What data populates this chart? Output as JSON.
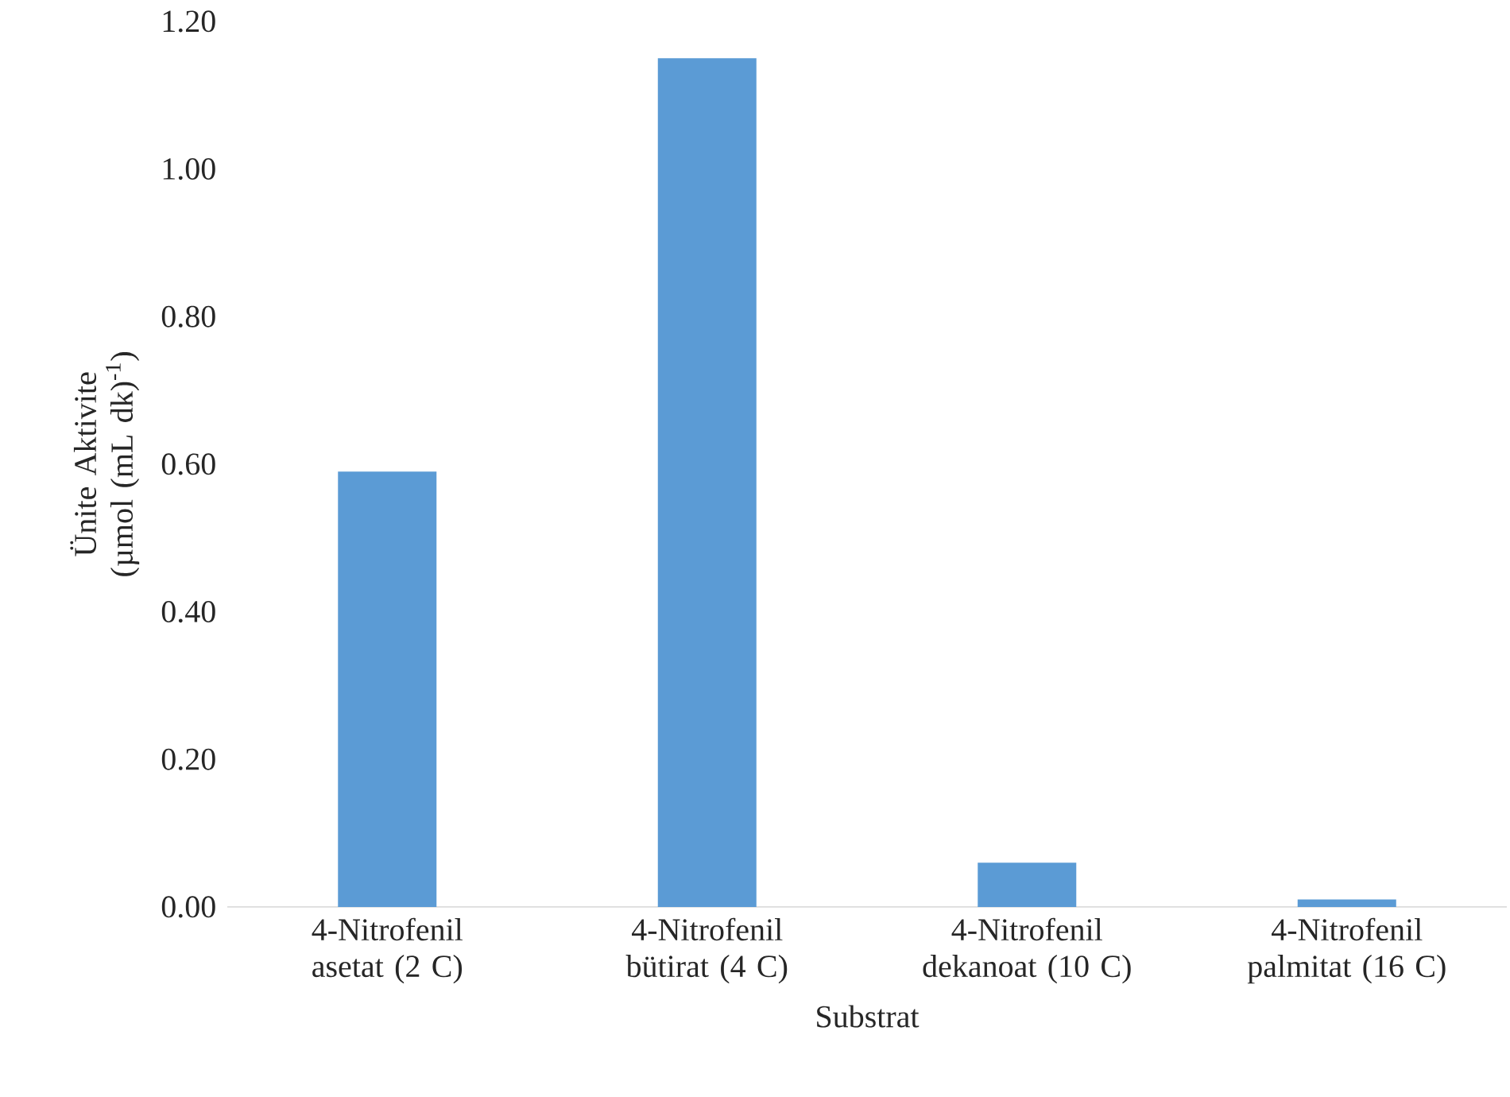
{
  "chart_data": {
    "type": "bar",
    "xlabel": "Substrat",
    "ylabel": "Ünite Aktivite (µmol (mL dk)$^{-1}$)",
    "categories": [
      "4-Nitrofenil asetat (2 C)",
      "4-Nitrofenil bütirat (4 C)",
      "4-Nitrofenil dekanoat (10 C)",
      "4-Nitrofenil palmitat (16 C)"
    ],
    "values": [
      0.59,
      1.15,
      0.06,
      0.01
    ],
    "color": "#5b9bd5",
    "ylim": [
      0,
      1.2
    ],
    "yticks": [
      {
        "value": 0,
        "label": "0.00"
      },
      {
        "value": 0.2,
        "label": "0.20"
      },
      {
        "value": 0.4,
        "label": "0.40"
      },
      {
        "value": 0.6,
        "label": "0.60"
      },
      {
        "value": 0.8,
        "label": "0.80"
      },
      {
        "value": 1.0,
        "label": "1.00"
      },
      {
        "value": 1.2,
        "label": "1.20"
      }
    ],
    "grid": false
  }
}
